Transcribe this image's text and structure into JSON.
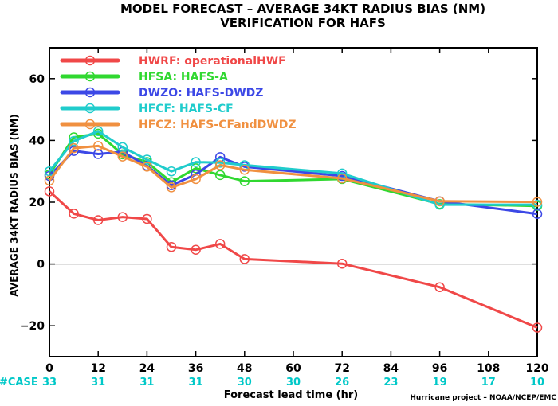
{
  "chart_data": {
    "type": "line",
    "title": [
      "MODEL FORECAST – AVERAGE 34KT RADIUS BIAS (NM)",
      "VERIFICATION FOR HAFS"
    ],
    "xlabel": "Forecast lead time (hr)",
    "ylabel": "AVERAGE 34KT RADIUS BIAS (NM)",
    "credit": "Hurricane project – NOAA/NCEP/EMC",
    "xlim": [
      0,
      120
    ],
    "ylim": [
      -30,
      70
    ],
    "xticks": [
      0,
      12,
      24,
      36,
      48,
      60,
      72,
      84,
      96,
      108,
      120
    ],
    "yticks": [
      -20,
      0,
      20,
      40,
      60
    ],
    "zero_line": true,
    "legend_position": "top-left",
    "case_label": "#CASE",
    "case_colors": {
      "label": "#00c8c8",
      "count": "#00c8c8"
    },
    "cases": [
      {
        "x": 0,
        "n": "33"
      },
      {
        "x": 12,
        "n": "31"
      },
      {
        "x": 24,
        "n": "31"
      },
      {
        "x": 36,
        "n": "31"
      },
      {
        "x": 48,
        "n": "30"
      },
      {
        "x": 60,
        "n": "30"
      },
      {
        "x": 72,
        "n": "26"
      },
      {
        "x": 84,
        "n": "23"
      },
      {
        "x": 96,
        "n": "19"
      },
      {
        "x": 108,
        "n": "17"
      },
      {
        "x": 120,
        "n": "10"
      }
    ],
    "series": [
      {
        "name": "HWRF: operationalHWF",
        "color": "#f04848",
        "points": [
          [
            0,
            23.5
          ],
          [
            6,
            16.3
          ],
          [
            12,
            14.2
          ],
          [
            18,
            15.2
          ],
          [
            24,
            14.6
          ],
          [
            30,
            5.5
          ],
          [
            36,
            4.6
          ],
          [
            42,
            6.5
          ],
          [
            48,
            1.6
          ],
          [
            72,
            0.1
          ],
          [
            96,
            -7.5
          ],
          [
            120,
            -20.6
          ]
        ]
      },
      {
        "name": "HFSA: HAFS-A",
        "color": "#30d830",
        "points": [
          [
            0,
            29
          ],
          [
            6,
            41
          ],
          [
            12,
            42.2
          ],
          [
            18,
            35.5
          ],
          [
            24,
            33
          ],
          [
            30,
            26.5
          ],
          [
            36,
            31
          ],
          [
            42,
            28.8
          ],
          [
            48,
            26.8
          ],
          [
            72,
            27.5
          ],
          [
            96,
            19.4
          ],
          [
            120,
            18.8
          ]
        ]
      },
      {
        "name": "DWZO: HAFS-DWDZ",
        "color": "#3c48e6",
        "points": [
          [
            0,
            28.5
          ],
          [
            6,
            36.6
          ],
          [
            12,
            35.6
          ],
          [
            18,
            36.3
          ],
          [
            24,
            31.8
          ],
          [
            30,
            25.5
          ],
          [
            36,
            29
          ],
          [
            42,
            34.6
          ],
          [
            48,
            31.5
          ],
          [
            72,
            28.5
          ],
          [
            96,
            20.3
          ],
          [
            120,
            16.2
          ]
        ]
      },
      {
        "name": "HFCF: HAFS-CF",
        "color": "#20cccc",
        "points": [
          [
            0,
            30
          ],
          [
            6,
            39.8
          ],
          [
            12,
            43
          ],
          [
            18,
            37.8
          ],
          [
            24,
            33.8
          ],
          [
            30,
            30
          ],
          [
            36,
            33
          ],
          [
            42,
            32.8
          ],
          [
            48,
            32
          ],
          [
            72,
            29.3
          ],
          [
            96,
            19.2
          ],
          [
            120,
            19.2
          ]
        ]
      },
      {
        "name": "HFCZ: HAFS-CFandDWDZ",
        "color": "#f09040",
        "points": [
          [
            0,
            27
          ],
          [
            6,
            37.5
          ],
          [
            12,
            38.2
          ],
          [
            18,
            34.8
          ],
          [
            24,
            31.5
          ],
          [
            30,
            24.8
          ],
          [
            36,
            27.5
          ],
          [
            42,
            32
          ],
          [
            48,
            30.5
          ],
          [
            72,
            27.7
          ],
          [
            96,
            20.3
          ],
          [
            120,
            20.1
          ]
        ]
      }
    ]
  }
}
